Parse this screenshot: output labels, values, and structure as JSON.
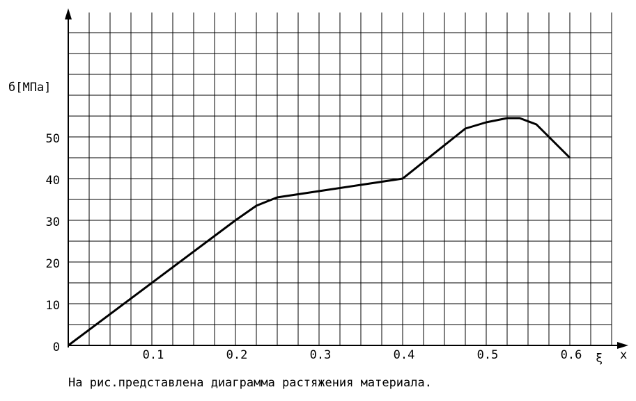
{
  "chart_data": {
    "type": "line",
    "y_label": "б[МПа]",
    "x_label_symbol": "ξ",
    "x_label": "x",
    "caption": "На рис.представлена диаграмма растяжения материала.",
    "x": [
      0,
      0.2,
      0.225,
      0.25,
      0.3,
      0.35,
      0.4,
      0.45,
      0.475,
      0.5,
      0.525,
      0.54,
      0.56,
      0.6
    ],
    "series": [
      {
        "name": "σ",
        "color": "#000000",
        "values": [
          0,
          30,
          33.5,
          35.5,
          37,
          38.5,
          40,
          48,
          52,
          53.5,
          54.5,
          54.5,
          53,
          45
        ]
      }
    ],
    "xlim": [
      0,
      0.65
    ],
    "ylim": [
      0,
      75
    ],
    "xticks": [
      0.1,
      0.2,
      0.3,
      0.4,
      0.5,
      0.6
    ],
    "yticks": [
      0,
      10,
      20,
      30,
      40,
      50
    ],
    "grid": true,
    "xgrid_step": 0.025,
    "ygrid_step": 5
  }
}
